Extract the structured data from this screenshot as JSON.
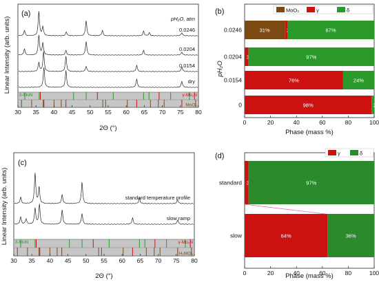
{
  "chart_data": [
    {
      "panel": "(a)",
      "type": "line",
      "xlabel": "2Θ (°)",
      "ylabel": "Linear Intensity (arb. units)",
      "xlim": [
        30,
        80
      ],
      "x_ticks": [
        30,
        35,
        40,
        45,
        50,
        55,
        60,
        65,
        70,
        75,
        80
      ],
      "legend_header": "pH₂O, atm",
      "series": [
        {
          "name": "0.0246",
          "peaks": [
            {
              "x": 31.8,
              "h": 0.35
            },
            {
              "x": 35.8,
              "h": 1.6
            },
            {
              "x": 36.9,
              "h": 0.6
            },
            {
              "x": 43.4,
              "h": 0.25
            },
            {
              "x": 48.9,
              "h": 1.0
            },
            {
              "x": 53.4,
              "h": 0.35
            },
            {
              "x": 64.8,
              "h": 0.3
            },
            {
              "x": 66.4,
              "h": 0.2
            },
            {
              "x": 75.4,
              "h": 0.2
            }
          ]
        },
        {
          "name": "0.0204",
          "peaks": [
            {
              "x": 31.8,
              "h": 0.4
            },
            {
              "x": 35.8,
              "h": 1.3
            },
            {
              "x": 36.9,
              "h": 0.8
            },
            {
              "x": 43.3,
              "h": 0.3
            },
            {
              "x": 48.9,
              "h": 0.9
            },
            {
              "x": 64.8,
              "h": 0.3
            },
            {
              "x": 75.4,
              "h": 0.2
            }
          ]
        },
        {
          "name": "0.0154",
          "peaks": [
            {
              "x": 35.8,
              "h": 0.6
            },
            {
              "x": 37.1,
              "h": 1.3
            },
            {
              "x": 43.3,
              "h": 1.0
            },
            {
              "x": 48.9,
              "h": 0.35
            },
            {
              "x": 62.9,
              "h": 0.4
            },
            {
              "x": 75.4,
              "h": 0.3
            }
          ]
        },
        {
          "name": "dry",
          "peaks": [
            {
              "x": 37.2,
              "h": 1.3
            },
            {
              "x": 43.3,
              "h": 1.1
            },
            {
              "x": 62.9,
              "h": 0.55
            },
            {
              "x": 75.4,
              "h": 0.4
            }
          ]
        }
      ],
      "reference_labels": [
        "δ-MoN",
        "γ-Mo₂N",
        "MoO₂"
      ],
      "reference_colors": {
        "d": "#2a9a2a",
        "g": "#cc1111",
        "m": "#7a4a1a"
      }
    },
    {
      "panel": "(b)",
      "type": "bar",
      "orientation": "horizontal",
      "stacked": true,
      "xlabel": "Phase (mass %)",
      "ylabel": "pH₂O",
      "xlim": [
        0,
        100
      ],
      "x_ticks": [
        0,
        20,
        40,
        60,
        80,
        100
      ],
      "categories": [
        "0.0246",
        "0.0204",
        "0.0154",
        "0"
      ],
      "legend": {
        "placement": "top-right",
        "labels": [
          "MoO₂",
          "γ",
          "δ"
        ]
      },
      "colors": [
        "#7a4a12",
        "#cc1111",
        "#2b9a2b"
      ],
      "series": [
        {
          "name": "MoO₂",
          "values": [
            31,
            0,
            0,
            0
          ]
        },
        {
          "name": "γ",
          "values": [
            2,
            3,
            76,
            98
          ]
        },
        {
          "name": "δ",
          "values": [
            67,
            97,
            24,
            2
          ]
        }
      ],
      "data_labels": [
        [
          "31%",
          "2%",
          "67%"
        ],
        [
          "",
          "3%",
          "97%"
        ],
        [
          "",
          "76%",
          "24%"
        ],
        [
          "",
          "98%",
          "2%"
        ]
      ]
    },
    {
      "panel": "(c)",
      "type": "line",
      "xlabel": "2Θ (°)",
      "ylabel": "Linear Intensity (arb. units)",
      "xlim": [
        30,
        80
      ],
      "x_ticks": [
        30,
        35,
        40,
        45,
        50,
        55,
        60,
        65,
        70,
        75,
        80
      ],
      "series": [
        {
          "name": "standard temperature profile",
          "peaks": [
            {
              "x": 31.9,
              "h": 0.35
            },
            {
              "x": 35.9,
              "h": 1.7
            },
            {
              "x": 37.0,
              "h": 0.9
            },
            {
              "x": 43.4,
              "h": 0.5
            },
            {
              "x": 48.9,
              "h": 1.2
            },
            {
              "x": 64.8,
              "h": 0.3
            },
            {
              "x": 75.4,
              "h": 0.2
            }
          ]
        },
        {
          "name": "slow ramp",
          "peaks": [
            {
              "x": 31.9,
              "h": 0.4
            },
            {
              "x": 33.4,
              "h": 0.3
            },
            {
              "x": 35.9,
              "h": 0.9
            },
            {
              "x": 37.1,
              "h": 1.1
            },
            {
              "x": 43.4,
              "h": 0.8
            },
            {
              "x": 48.9,
              "h": 0.6
            },
            {
              "x": 62.9,
              "h": 0.35
            },
            {
              "x": 75.4,
              "h": 0.25
            }
          ]
        }
      ],
      "reference_labels": [
        "δ-MoN",
        "γ-Mo₂N",
        "H₂MO₅"
      ],
      "reference_colors": {
        "d": "#2a9a2a",
        "g": "#cc1111",
        "m": "#7a4a1a"
      }
    },
    {
      "panel": "(d)",
      "type": "bar",
      "orientation": "horizontal",
      "stacked": true,
      "xlabel": "Phase (mass %)",
      "xlim": [
        0,
        100
      ],
      "x_ticks": [
        0,
        20,
        40,
        60,
        80,
        100
      ],
      "categories": [
        "standard",
        "slow"
      ],
      "legend": {
        "placement": "top-right",
        "labels": [
          "γ",
          "δ"
        ]
      },
      "colors": [
        "#6e4214",
        "#cc1111",
        "#2b8a2b"
      ],
      "series": [
        {
          "name": "unlabeled",
          "values": [
            0,
            0
          ]
        },
        {
          "name": "γ",
          "values": [
            3,
            64
          ]
        },
        {
          "name": "δ",
          "values": [
            97,
            36
          ]
        }
      ],
      "data_labels": [
        [
          "",
          "3%",
          "97%"
        ],
        [
          "",
          "64%",
          "36%"
        ]
      ]
    }
  ]
}
